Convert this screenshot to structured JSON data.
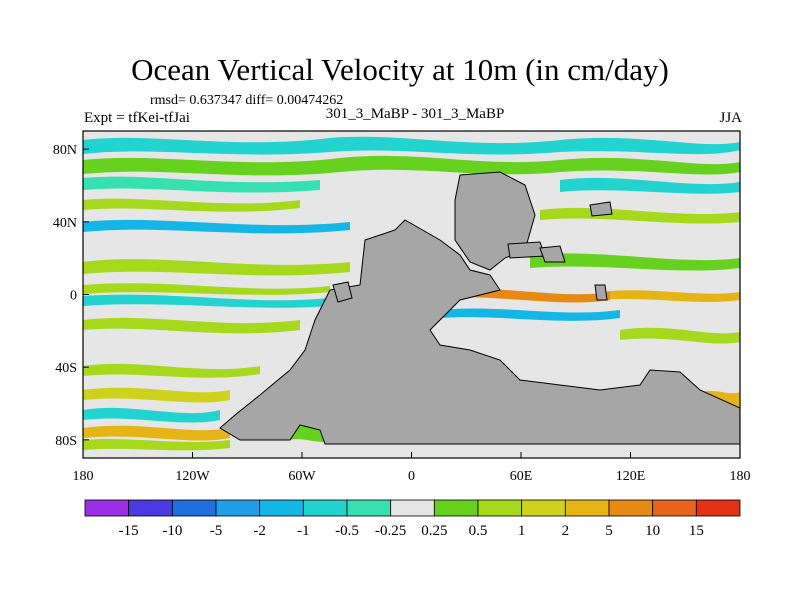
{
  "header": {
    "title": "Ocean Vertical Velocity at 10m (in cm/day)",
    "stats": "rmsd= 0.637347 diff= 0.00474262",
    "expt": "Expt = tfKei-tfJai",
    "subtitle": "301_3_MaBP - 301_3_MaBP",
    "season": "JJA"
  },
  "colors": {
    "land": "#a6a6a6",
    "neutral": "#e6e6e6"
  },
  "map": {
    "x_ticks": [
      {
        "label": "180",
        "lon": -180
      },
      {
        "label": "120W",
        "lon": -120
      },
      {
        "label": "60W",
        "lon": -60
      },
      {
        "label": "0",
        "lon": 0
      },
      {
        "label": "60E",
        "lon": 60
      },
      {
        "label": "120E",
        "lon": 120
      },
      {
        "label": "180",
        "lon": 180
      }
    ],
    "y_ticks": [
      {
        "label": "80N",
        "lat": 80
      },
      {
        "label": "40N",
        "lat": 40
      },
      {
        "label": "0",
        "lat": 0
      },
      {
        "label": "40S",
        "lat": -40
      },
      {
        "label": "80S",
        "lat": -80
      }
    ],
    "lon_range": [
      -180,
      180
    ],
    "lat_range": [
      -90,
      90
    ]
  },
  "colorbar": {
    "labels": [
      "-15",
      "-10",
      "-5",
      "-2",
      "-1",
      "-0.5",
      "-0.25",
      "0.25",
      "0.5",
      "1",
      "2",
      "5",
      "10",
      "15"
    ],
    "colors": [
      "#9a2fe6",
      "#4a3ae0",
      "#1f6fe0",
      "#1f9de6",
      "#14b6e6",
      "#22d3cf",
      "#36e0b0",
      "#e6e6e6",
      "#66d21f",
      "#a6d81c",
      "#cfd21c",
      "#e6b414",
      "#e68a14",
      "#e6641c",
      "#e63214"
    ]
  }
}
